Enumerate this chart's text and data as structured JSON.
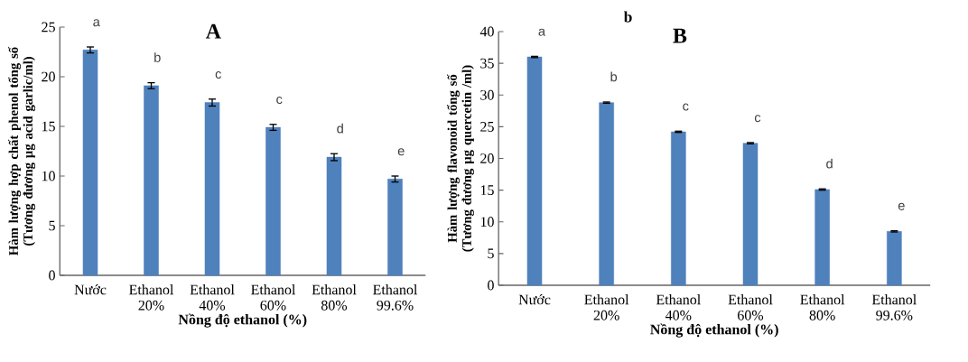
{
  "chart_data": [
    {
      "type": "bar",
      "title": "A",
      "xlabel": "Nồng độ ethanol (%)",
      "ylabel": "Hàm lượng hợp chất phenol  tổng số (Tương đương µg acid garlic/ml)",
      "categories": [
        "Nước",
        "Ethanol 20%",
        "Ethanol 40%",
        "Ethanol 60%",
        "Ethanol 80%",
        "Ethanol 99.6%"
      ],
      "values": [
        22.7,
        19.1,
        17.4,
        14.9,
        11.9,
        9.7
      ],
      "errors": [
        0.3,
        0.3,
        0.35,
        0.3,
        0.35,
        0.3
      ],
      "color": "#4f81bd",
      "ylim": [
        0,
        25
      ],
      "yticks": [
        0,
        5,
        10,
        15,
        20,
        25
      ],
      "annotations": [
        "a",
        "b",
        "c",
        "c",
        "d",
        "e"
      ]
    },
    {
      "type": "bar",
      "title": "B",
      "xlabel": "Nồng độ ethanol (%)",
      "ylabel": "Hàm lượng flavonoid tổng số (Tương đương µg quercetin /ml)",
      "categories": [
        "Nước",
        "Ethanol 20%",
        "Ethanol 40%",
        "Ethanol 60%",
        "Ethanol 80%",
        "Ethanol 99.6%"
      ],
      "values": [
        36.0,
        28.8,
        24.2,
        22.4,
        15.1,
        8.5
      ],
      "errors": [
        0.1,
        0.1,
        0.1,
        0.1,
        0.1,
        0.1
      ],
      "color": "#4f81bd",
      "ylim": [
        0,
        40
      ],
      "yticks": [
        0,
        5,
        10,
        15,
        20,
        25,
        30,
        35,
        40
      ],
      "annotations": [
        "b",
        "a",
        "b",
        "c",
        "c",
        "d",
        "e"
      ]
    }
  ]
}
